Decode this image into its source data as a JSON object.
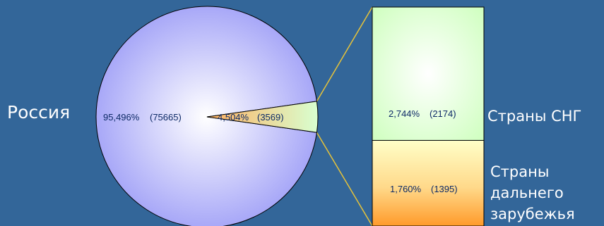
{
  "chart_data": {
    "type": "pie",
    "slices": [
      {
        "label": "Россия",
        "percent_text": "95,496%",
        "count_text": "(75665)",
        "value": 75665
      },
      {
        "label": "",
        "percent_text": "4,504%",
        "count_text": "(3569)",
        "value": 3569
      }
    ],
    "breakdown": {
      "type": "stacked_bar",
      "segments": [
        {
          "label_lines": [
            "Страны СНГ"
          ],
          "percent_text": "2,744%",
          "count_text": "(2174)",
          "value": 2174
        },
        {
          "label_lines": [
            "Страны",
            "дальнего",
            "зарубежья"
          ],
          "percent_text": "1,760%",
          "count_text": "(1395)",
          "value": 1395
        }
      ]
    },
    "colors": {
      "background": "#336699",
      "pie_main": "#9f9ff7",
      "pie_main_center": "#ffffff",
      "pie_small_left": "#ffb060",
      "pie_small_right": "#d8ffd0",
      "cis_fill": "#cfffbf",
      "far_top": "#ffffc8",
      "far_bottom": "#ff9a2a",
      "connector": "#e6c33a"
    }
  }
}
